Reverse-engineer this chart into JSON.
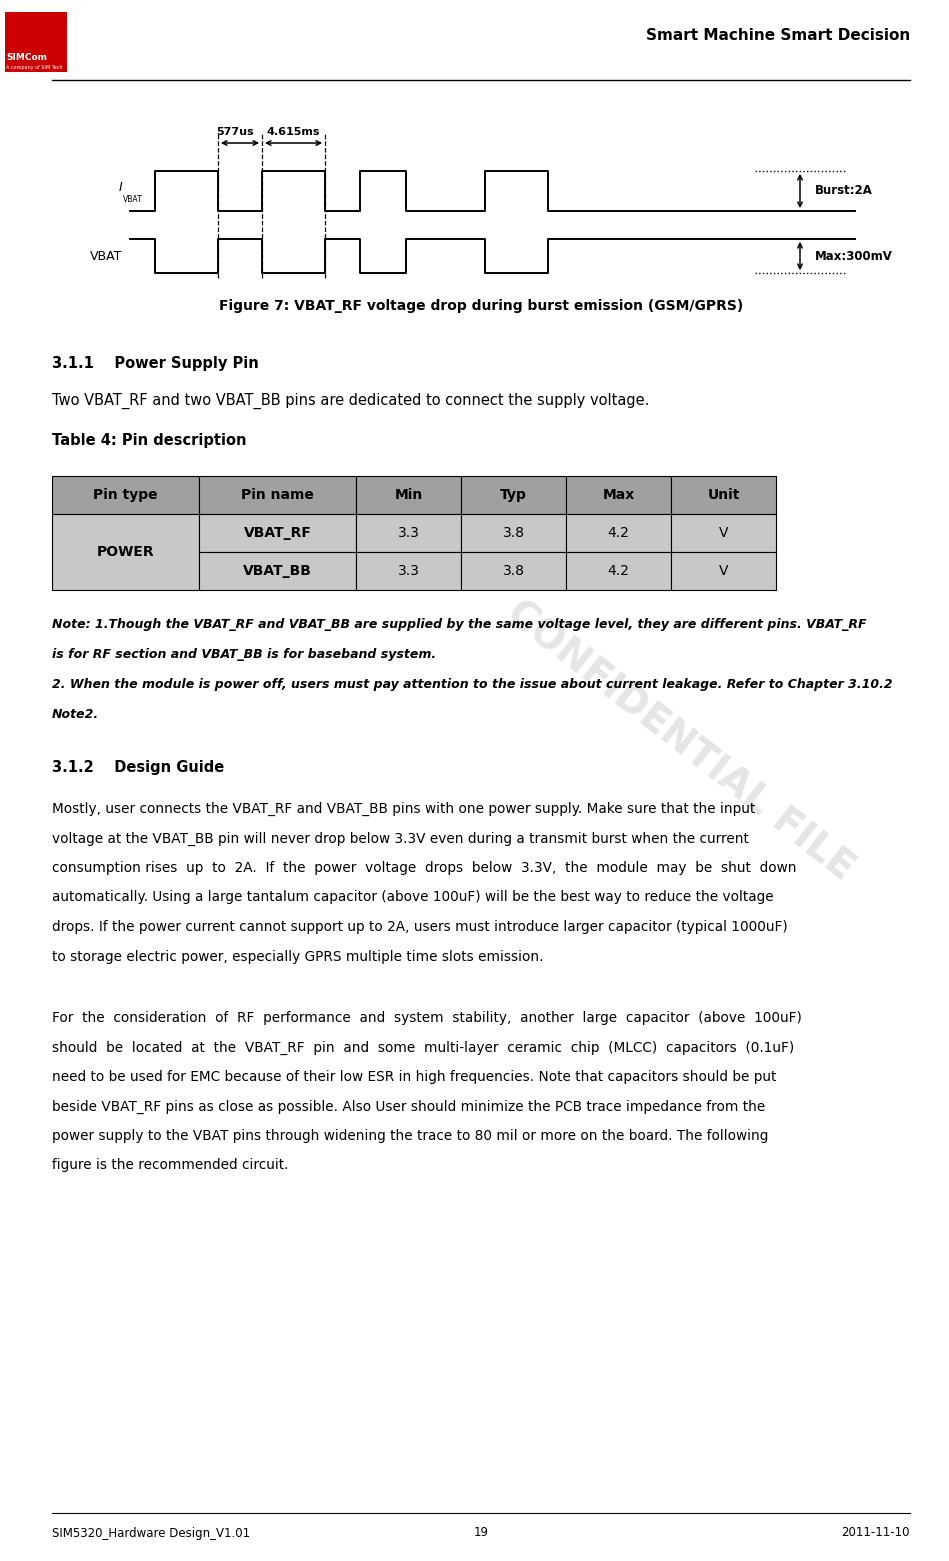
{
  "page_width": 9.49,
  "page_height": 15.61,
  "dpi": 100,
  "bg_color": "#ffffff",
  "header_text": "Smart Machine Smart Decision",
  "footer_left": "SIM5320_Hardware Design_V1.01",
  "footer_center": "19",
  "footer_right": "2011-11-10",
  "figure_caption": "Figure 7: VBAT_RF voltage drop during burst emission (GSM/GPRS)",
  "section_311_title": "3.1.1    Power Supply Pin",
  "section_311_body": "Two VBAT_RF and two VBAT_BB pins are dedicated to connect the supply voltage.",
  "table4_title": "Table 4: Pin description",
  "table_headers": [
    "Pin type",
    "Pin name",
    "Min",
    "Typ",
    "Max",
    "Unit"
  ],
  "table_rows": [
    [
      "POWER",
      "VBAT_RF",
      "3.3",
      "3.8",
      "4.2",
      "V"
    ],
    [
      "",
      "VBAT_BB",
      "3.3",
      "3.8",
      "4.2",
      "V"
    ]
  ],
  "note_line1": "Note: 1.Though the VBAT_RF and VBAT_BB are supplied by the same voltage level, they are different pins. VBAT_RF",
  "note_line2": "is for RF section and VBAT_BB is for baseband system.",
  "note_line3": "2. When the module is power off, users must pay attention to the issue about current leakage. Refer to Chapter 3.10.2",
  "note_line4": "Note2.",
  "section_312_title": "3.1.2    Design Guide",
  "body1_line1": "Mostly, user connects the VBAT_RF and VBAT_BB pins with one power supply. Make sure that the input",
  "body1_line2": "voltage at the VBAT_BB pin will never drop below 3.3V even during a transmit burst when the current",
  "body1_line3": "consumption rises  up  to  2A.  If  the  power  voltage  drops  below  3.3V,  the  module  may  be  shut  down",
  "body1_line4": "automatically. Using a large tantalum capacitor (above 100uF) will be the best way to reduce the voltage",
  "body1_line5": "drops. If the power current cannot support up to 2A, users must introduce larger capacitor (typical 1000uF)",
  "body1_line6": "to storage electric power, especially GPRS multiple time slots emission.",
  "body2_line1": "For  the  consideration  of  RF  performance  and  system  stability,  another  large  capacitor  (above  100uF)",
  "body2_line2": "should  be  located  at  the  VBAT_RF  pin  and  some  multi-layer  ceramic  chip  (MLCC)  capacitors  (0.1uF)",
  "body2_line3": "need to be used for EMC because of their low ESR in high frequencies. Note that capacitors should be put",
  "body2_line4": "beside VBAT_RF pins as close as possible. Also User should minimize the PCB trace impedance from the",
  "body2_line5": "power supply to the VBAT pins through widening the trace to 80 mil or more on the board. The following",
  "body2_line6": "figure is the recommended circuit.",
  "waveform_577us": "577us",
  "waveform_4615ms": "4.615ms",
  "waveform_burst2a": "Burst:2A",
  "waveform_max300mv": "Max:300mV",
  "table_header_color": "#a0a0a0",
  "table_row_color": "#c8c8c8",
  "header_line_color": "#000000",
  "text_color": "#000000",
  "note_italic_bold": true
}
